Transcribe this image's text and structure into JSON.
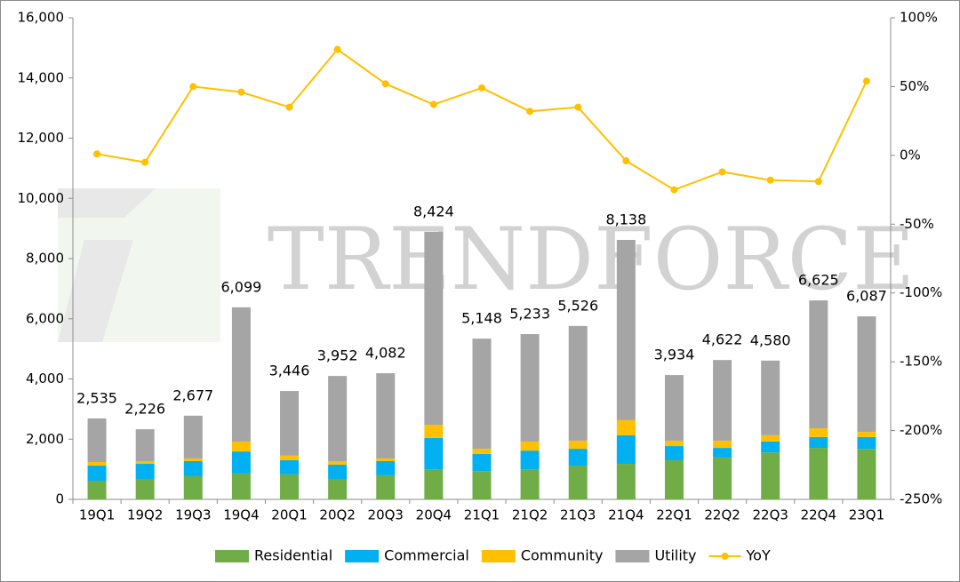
{
  "chart_data": {
    "type": "stacked-bar-line",
    "watermark": "TRENDFORCE",
    "categories": [
      "19Q1",
      "19Q2",
      "19Q3",
      "19Q4",
      "20Q1",
      "20Q2",
      "20Q3",
      "20Q4",
      "21Q1",
      "21Q2",
      "21Q3",
      "21Q4",
      "22Q1",
      "22Q2",
      "22Q3",
      "22Q4",
      "23Q1"
    ],
    "series": [
      {
        "name": "Residential",
        "color": "#70ad47",
        "values": [
          620,
          680,
          770,
          860,
          830,
          680,
          800,
          1000,
          940,
          1000,
          1120,
          1180,
          1300,
          1390,
          1560,
          1710,
          1680
        ]
      },
      {
        "name": "Commercial",
        "color": "#00b0f0",
        "values": [
          500,
          500,
          500,
          730,
          470,
          470,
          470,
          1040,
          570,
          620,
          560,
          950,
          470,
          320,
          360,
          360,
          390
        ]
      },
      {
        "name": "Community",
        "color": "#ffc000",
        "values": [
          120,
          90,
          90,
          330,
          150,
          120,
          90,
          440,
          170,
          300,
          270,
          500,
          180,
          240,
          210,
          290,
          170
        ]
      },
      {
        "name": "Utility",
        "color": "#a5a5a5",
        "values": [
          1450,
          1060,
          1420,
          4460,
          2150,
          2830,
          2830,
          6410,
          3660,
          3570,
          3810,
          5990,
          2180,
          2680,
          2480,
          4250,
          3840
        ]
      },
      {
        "name": "YoY",
        "color": "#ffc000",
        "axis": "y2",
        "values": [
          1,
          -5,
          50,
          46,
          35,
          77,
          52,
          37,
          49,
          32,
          35,
          -4,
          -25,
          -12,
          -18,
          -19,
          54
        ]
      }
    ],
    "annotations": [
      "2,535",
      "2,226",
      "2,677",
      "6,099",
      "3,446",
      "3,952",
      "4,082",
      "8,424",
      "5,148",
      "5,233",
      "5,526",
      "8,138",
      "3,934",
      "4,622",
      "4,580",
      "6,625",
      "6,087"
    ],
    "ylim": [
      0,
      16000
    ],
    "yticks": [
      0,
      {
        "value": 2000,
        "label": "2,000"
      },
      {
        "value": 4000,
        "label": "4,000"
      },
      {
        "value": 6000,
        "label": "6,000"
      },
      {
        "value": 8000,
        "label": "8,000"
      },
      {
        "value": 10000,
        "label": "10,000"
      },
      {
        "value": 12000,
        "label": "12,000"
      },
      {
        "value": 14000,
        "label": "14,000"
      },
      {
        "value": 16000,
        "label": "16,000"
      }
    ],
    "y2lim": [
      -250,
      100
    ],
    "y2ticks": [
      {
        "value": -250,
        "label": "-250%"
      },
      {
        "value": -200,
        "label": "-200%"
      },
      {
        "value": -150,
        "label": "-150%"
      },
      {
        "value": -100,
        "label": "-100%"
      },
      {
        "value": -50,
        "label": "-50%"
      },
      {
        "value": 0,
        "label": "0%"
      },
      {
        "value": 50,
        "label": "50%"
      },
      {
        "value": 100,
        "label": "100%"
      }
    ],
    "legend": "bottom"
  }
}
